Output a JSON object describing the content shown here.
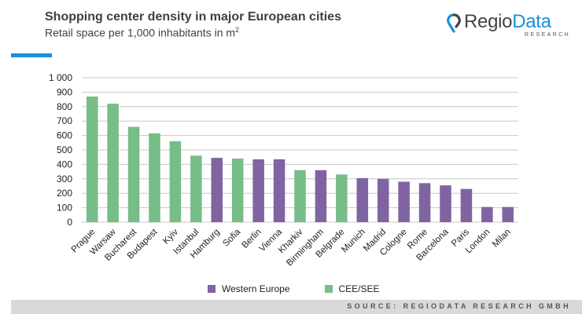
{
  "header": {
    "title": "Shopping center density in major European cities",
    "subtitle_main": "Retail space per 1,000 inhabitants in m",
    "subtitle_sup": "2"
  },
  "logo": {
    "part1": "Regio",
    "part2": "Data",
    "sub": "RESEARCH",
    "brand_color": "#1a90d9"
  },
  "footer": {
    "source": "SOURCE: REGIODATA RESEARCH GMBH"
  },
  "colors": {
    "western": "#8064a2",
    "cee": "#77bd87"
  },
  "chart_data": {
    "type": "bar",
    "title": "Shopping center density in major European cities",
    "subtitle": "Retail space per 1,000 inhabitants in m²",
    "xlabel": "",
    "ylabel": "",
    "ylim": [
      0,
      1000
    ],
    "yticks": [
      0,
      100,
      200,
      300,
      400,
      500,
      600,
      700,
      800,
      900,
      1000
    ],
    "ytick_labels": [
      "0",
      "100",
      "200",
      "300",
      "400",
      "500",
      "600",
      "700",
      "800",
      "900",
      "1 000"
    ],
    "grid": true,
    "legend_position": "bottom",
    "legend": [
      {
        "name": "Western Europe",
        "key": "western"
      },
      {
        "name": "CEE/SEE",
        "key": "cee"
      }
    ],
    "categories": [
      "Prague",
      "Warsaw",
      "Bucharest",
      "Budapest",
      "Kyiv",
      "Istanbul",
      "Hamburg",
      "Sofia",
      "Berlin",
      "Vienna",
      "Kharkiv",
      "Birmingham",
      "Belgrade",
      "Munich",
      "Madrid",
      "Cologne",
      "Rome",
      "Barcelona",
      "Paris",
      "London",
      "Milan"
    ],
    "values": [
      870,
      820,
      660,
      615,
      560,
      460,
      445,
      440,
      435,
      435,
      360,
      360,
      330,
      305,
      300,
      280,
      270,
      255,
      230,
      105,
      105
    ],
    "groups": [
      "cee",
      "cee",
      "cee",
      "cee",
      "cee",
      "cee",
      "western",
      "cee",
      "western",
      "western",
      "cee",
      "western",
      "cee",
      "western",
      "western",
      "western",
      "western",
      "western",
      "western",
      "western",
      "western"
    ]
  }
}
